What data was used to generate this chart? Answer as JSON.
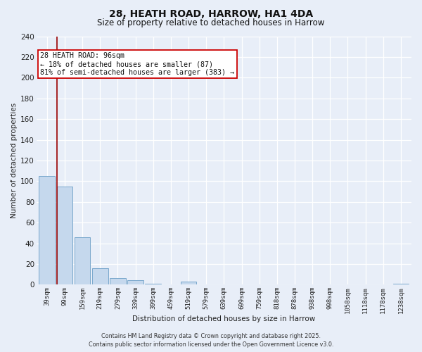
{
  "title": "28, HEATH ROAD, HARROW, HA1 4DA",
  "subtitle": "Size of property relative to detached houses in Harrow",
  "xlabel": "Distribution of detached houses by size in Harrow",
  "ylabel": "Number of detached properties",
  "categories": [
    "39sqm",
    "99sqm",
    "159sqm",
    "219sqm",
    "279sqm",
    "339sqm",
    "399sqm",
    "459sqm",
    "519sqm",
    "579sqm",
    "639sqm",
    "699sqm",
    "759sqm",
    "818sqm",
    "878sqm",
    "938sqm",
    "998sqm",
    "1058sqm",
    "1118sqm",
    "1178sqm",
    "1238sqm"
  ],
  "values": [
    105,
    95,
    46,
    16,
    6,
    4,
    1,
    0,
    3,
    0,
    0,
    0,
    0,
    0,
    0,
    0,
    0,
    0,
    0,
    0,
    1
  ],
  "bar_color": "#c5d8ed",
  "bar_edge_color": "#7aa8cc",
  "background_color": "#e8eef8",
  "grid_color": "#ffffff",
  "vline_x": 0.57,
  "vline_color": "#990000",
  "annotation_line1": "28 HEATH ROAD: 96sqm",
  "annotation_line2": "← 18% of detached houses are smaller (87)",
  "annotation_line3": "81% of semi-detached houses are larger (383) →",
  "annotation_box_color": "#ffffff",
  "annotation_box_edge": "#cc0000",
  "ylim": [
    0,
    240
  ],
  "yticks": [
    0,
    20,
    40,
    60,
    80,
    100,
    120,
    140,
    160,
    180,
    200,
    220,
    240
  ],
  "footer_line1": "Contains HM Land Registry data © Crown copyright and database right 2025.",
  "footer_line2": "Contains public sector information licensed under the Open Government Licence v3.0."
}
